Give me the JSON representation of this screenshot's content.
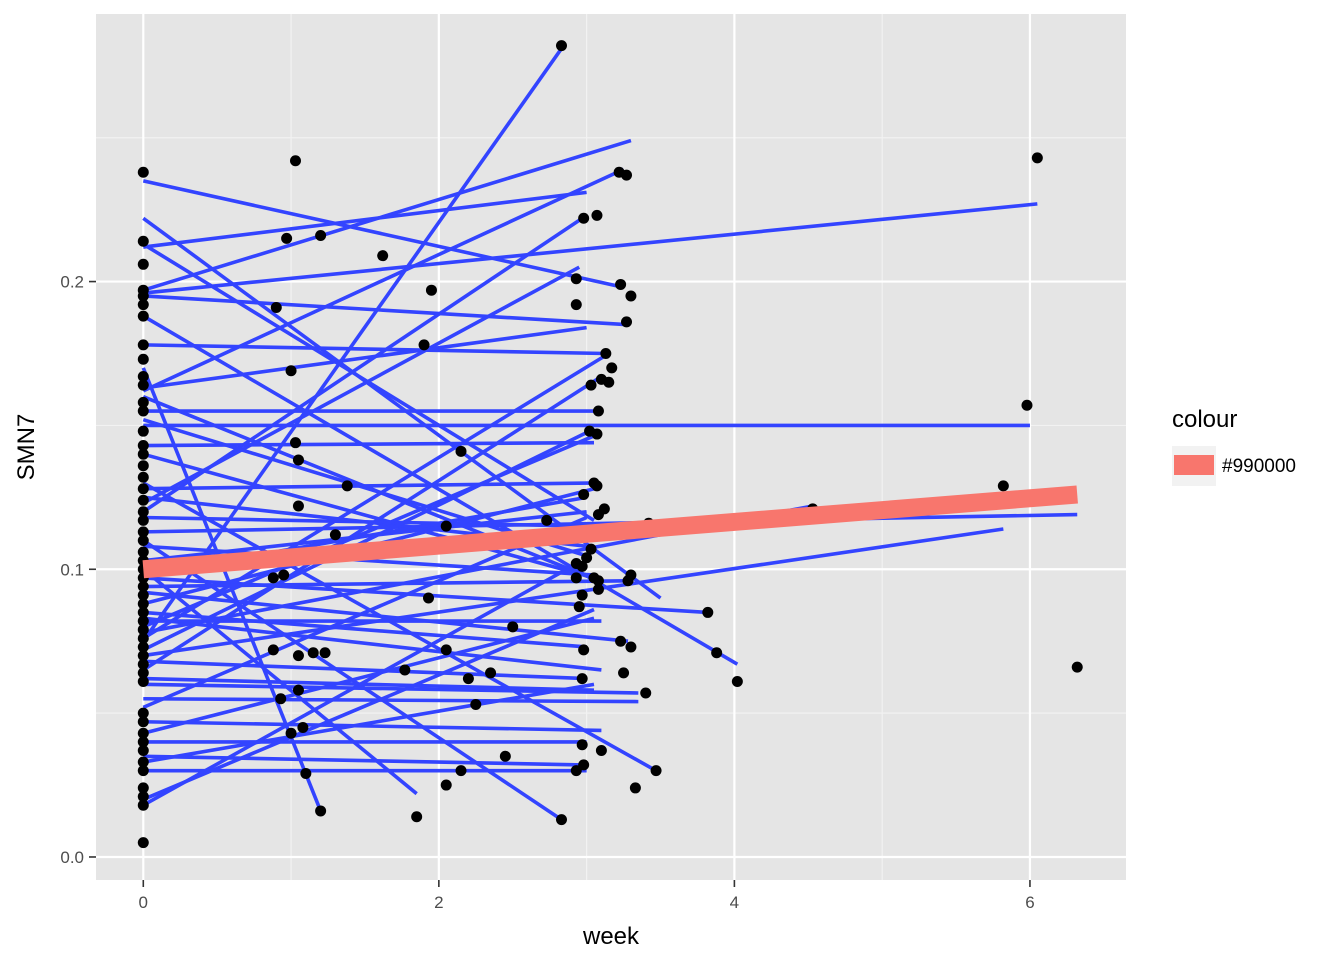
{
  "chart_data": {
    "type": "scatter",
    "xlabel": "week",
    "ylabel": "SMN7",
    "xlim": [
      -0.32,
      6.65
    ],
    "ylim": [
      -0.008,
      0.293
    ],
    "x_ticks": [
      0,
      2,
      4,
      6
    ],
    "x_tick_labels": [
      "0",
      "2",
      "4",
      "6"
    ],
    "y_ticks": [
      0.0,
      0.1,
      0.2
    ],
    "y_tick_labels": [
      "0.0",
      "0.1",
      "0.2"
    ],
    "grid": true,
    "legend": {
      "title": "colour",
      "position": "right",
      "entries": [
        {
          "label": "#990000",
          "color": "#F8766D"
        }
      ]
    },
    "colors": {
      "panel": "#E5E5E5",
      "grid": "#FFFFFF",
      "points": "#000000",
      "subject_lines": "#3344FF",
      "trend_line": "#F8766D"
    },
    "points": [
      [
        0,
        0.238
      ],
      [
        0,
        0.214
      ],
      [
        0,
        0.206
      ],
      [
        0,
        0.197
      ],
      [
        0,
        0.195
      ],
      [
        0,
        0.192
      ],
      [
        0,
        0.188
      ],
      [
        0,
        0.178
      ],
      [
        0,
        0.173
      ],
      [
        0,
        0.167
      ],
      [
        0,
        0.164
      ],
      [
        0,
        0.158
      ],
      [
        0,
        0.155
      ],
      [
        0,
        0.148
      ],
      [
        0,
        0.143
      ],
      [
        0,
        0.14
      ],
      [
        0,
        0.136
      ],
      [
        0,
        0.132
      ],
      [
        0,
        0.128
      ],
      [
        0,
        0.124
      ],
      [
        0,
        0.12
      ],
      [
        0,
        0.117
      ],
      [
        0,
        0.113
      ],
      [
        0,
        0.11
      ],
      [
        0,
        0.106
      ],
      [
        0,
        0.103
      ],
      [
        0,
        0.1
      ],
      [
        0,
        0.097
      ],
      [
        0,
        0.094
      ],
      [
        0,
        0.091
      ],
      [
        0,
        0.088
      ],
      [
        0,
        0.085
      ],
      [
        0,
        0.082
      ],
      [
        0,
        0.079
      ],
      [
        0,
        0.076
      ],
      [
        0,
        0.073
      ],
      [
        0,
        0.07
      ],
      [
        0,
        0.067
      ],
      [
        0,
        0.064
      ],
      [
        0,
        0.061
      ],
      [
        0,
        0.05
      ],
      [
        0,
        0.047
      ],
      [
        0,
        0.043
      ],
      [
        0,
        0.04
      ],
      [
        0,
        0.037
      ],
      [
        0,
        0.033
      ],
      [
        0,
        0.03
      ],
      [
        0,
        0.024
      ],
      [
        0,
        0.021
      ],
      [
        0,
        0.018
      ],
      [
        0,
        0.005
      ],
      [
        1.03,
        0.242
      ],
      [
        0.97,
        0.215
      ],
      [
        1.2,
        0.216
      ],
      [
        0.9,
        0.191
      ],
      [
        1.62,
        0.209
      ],
      [
        1.95,
        0.197
      ],
      [
        1.9,
        0.178
      ],
      [
        1.0,
        0.169
      ],
      [
        1.03,
        0.144
      ],
      [
        1.05,
        0.138
      ],
      [
        1.05,
        0.122
      ],
      [
        1.38,
        0.129
      ],
      [
        2.15,
        0.141
      ],
      [
        2.05,
        0.115
      ],
      [
        1.3,
        0.112
      ],
      [
        0.95,
        0.098
      ],
      [
        0.88,
        0.097
      ],
      [
        1.93,
        0.09
      ],
      [
        0.88,
        0.072
      ],
      [
        1.05,
        0.07
      ],
      [
        1.15,
        0.071
      ],
      [
        1.23,
        0.071
      ],
      [
        1.77,
        0.065
      ],
      [
        2.05,
        0.072
      ],
      [
        2.2,
        0.062
      ],
      [
        2.25,
        0.053
      ],
      [
        0.93,
        0.055
      ],
      [
        1.05,
        0.058
      ],
      [
        1.0,
        0.043
      ],
      [
        1.08,
        0.045
      ],
      [
        1.1,
        0.029
      ],
      [
        1.2,
        0.016
      ],
      [
        1.85,
        0.014
      ],
      [
        2.05,
        0.025
      ],
      [
        2.15,
        0.03
      ],
      [
        2.45,
        0.035
      ],
      [
        2.35,
        0.064
      ],
      [
        2.5,
        0.08
      ],
      [
        2.83,
        0.282
      ],
      [
        3.22,
        0.238
      ],
      [
        3.27,
        0.237
      ],
      [
        2.98,
        0.222
      ],
      [
        3.07,
        0.223
      ],
      [
        2.93,
        0.201
      ],
      [
        3.23,
        0.199
      ],
      [
        3.3,
        0.195
      ],
      [
        2.93,
        0.192
      ],
      [
        3.27,
        0.186
      ],
      [
        3.13,
        0.175
      ],
      [
        3.17,
        0.17
      ],
      [
        3.1,
        0.166
      ],
      [
        3.03,
        0.164
      ],
      [
        3.15,
        0.165
      ],
      [
        3.08,
        0.155
      ],
      [
        3.02,
        0.148
      ],
      [
        3.07,
        0.147
      ],
      [
        3.05,
        0.13
      ],
      [
        3.07,
        0.129
      ],
      [
        2.98,
        0.126
      ],
      [
        3.12,
        0.121
      ],
      [
        3.08,
        0.119
      ],
      [
        2.73,
        0.117
      ],
      [
        3.03,
        0.107
      ],
      [
        3.0,
        0.104
      ],
      [
        2.93,
        0.102
      ],
      [
        2.97,
        0.101
      ],
      [
        3.3,
        0.098
      ],
      [
        2.93,
        0.097
      ],
      [
        3.05,
        0.097
      ],
      [
        3.08,
        0.096
      ],
      [
        3.28,
        0.096
      ],
      [
        2.97,
        0.091
      ],
      [
        3.08,
        0.093
      ],
      [
        2.95,
        0.087
      ],
      [
        3.23,
        0.075
      ],
      [
        3.3,
        0.073
      ],
      [
        2.98,
        0.072
      ],
      [
        3.25,
        0.064
      ],
      [
        2.97,
        0.062
      ],
      [
        3.4,
        0.057
      ],
      [
        2.97,
        0.039
      ],
      [
        3.1,
        0.037
      ],
      [
        2.98,
        0.032
      ],
      [
        2.93,
        0.03
      ],
      [
        3.47,
        0.03
      ],
      [
        3.33,
        0.024
      ],
      [
        2.83,
        0.013
      ],
      [
        3.42,
        0.116
      ],
      [
        3.82,
        0.085
      ],
      [
        3.88,
        0.071
      ],
      [
        4.02,
        0.061
      ],
      [
        4.53,
        0.121
      ],
      [
        5.98,
        0.157
      ],
      [
        5.82,
        0.129
      ],
      [
        6.05,
        0.243
      ],
      [
        6.32,
        0.066
      ]
    ],
    "subject_lines": [
      [
        0,
        0.222,
        3.5,
        0.09
      ],
      [
        0,
        0.212,
        3.0,
        0.231
      ],
      [
        0,
        0.235,
        3.25,
        0.198
      ],
      [
        0,
        0.196,
        6.05,
        0.227
      ],
      [
        0,
        0.197,
        3.3,
        0.249
      ],
      [
        0,
        0.162,
        3.25,
        0.239
      ],
      [
        0,
        0.075,
        2.83,
        0.281
      ],
      [
        0,
        0.12,
        3.0,
        0.223
      ],
      [
        0,
        0.195,
        3.28,
        0.185
      ],
      [
        0,
        0.178,
        3.13,
        0.175
      ],
      [
        0,
        0.163,
        3.0,
        0.184
      ],
      [
        0,
        0.155,
        3.05,
        0.155
      ],
      [
        0,
        0.15,
        6.0,
        0.15
      ],
      [
        0,
        0.113,
        6.32,
        0.119
      ],
      [
        0,
        0.07,
        5.82,
        0.114
      ],
      [
        0,
        0.078,
        4.53,
        0.122
      ],
      [
        0,
        0.188,
        4.02,
        0.067
      ],
      [
        0,
        0.097,
        3.82,
        0.085
      ],
      [
        0,
        0.143,
        3.05,
        0.144
      ],
      [
        0,
        0.128,
        3.08,
        0.13
      ],
      [
        0,
        0.123,
        2.95,
        0.205
      ],
      [
        0,
        0.213,
        3.05,
        0.117
      ],
      [
        0,
        0.152,
        2.98,
        0.105
      ],
      [
        0,
        0.108,
        3.05,
        0.098
      ],
      [
        0,
        0.092,
        3.28,
        0.075
      ],
      [
        0,
        0.085,
        3.0,
        0.073
      ],
      [
        0,
        0.083,
        3.1,
        0.065
      ],
      [
        0,
        0.06,
        3.35,
        0.057
      ],
      [
        0,
        0.055,
        3.35,
        0.054
      ],
      [
        0,
        0.047,
        3.1,
        0.044
      ],
      [
        0,
        0.04,
        3.0,
        0.04
      ],
      [
        0,
        0.035,
        2.97,
        0.032
      ],
      [
        0,
        0.03,
        3.0,
        0.03
      ],
      [
        0,
        0.02,
        3.05,
        0.086
      ],
      [
        0,
        0.018,
        2.9,
        0.101
      ],
      [
        0,
        0.13,
        3.47,
        0.03
      ],
      [
        0,
        0.11,
        2.83,
        0.013
      ],
      [
        0,
        0.17,
        1.2,
        0.016
      ],
      [
        0,
        0.1,
        1.85,
        0.022
      ],
      [
        0,
        0.16,
        3.08,
        0.096
      ],
      [
        0,
        0.14,
        3.05,
        0.097
      ],
      [
        0,
        0.125,
        3.0,
        0.108
      ],
      [
        0,
        0.118,
        3.0,
        0.115
      ],
      [
        0,
        0.103,
        3.0,
        0.12
      ],
      [
        0,
        0.098,
        3.0,
        0.125
      ],
      [
        0,
        0.088,
        3.05,
        0.128
      ],
      [
        0,
        0.08,
        3.08,
        0.147
      ],
      [
        0,
        0.072,
        3.02,
        0.148
      ],
      [
        0,
        0.065,
        3.1,
        0.167
      ],
      [
        0,
        0.076,
        3.15,
        0.175
      ],
      [
        0,
        0.052,
        3.0,
        0.118
      ],
      [
        0,
        0.043,
        3.05,
        0.083
      ],
      [
        0,
        0.033,
        3.05,
        0.06
      ],
      [
        0,
        0.062,
        3.05,
        0.058
      ],
      [
        0,
        0.068,
        3.0,
        0.062
      ],
      [
        0,
        0.082,
        3.1,
        0.082
      ],
      [
        0,
        0.094,
        3.28,
        0.096
      ]
    ],
    "trend_line": [
      0,
      0.1,
      6.32,
      0.126
    ]
  }
}
